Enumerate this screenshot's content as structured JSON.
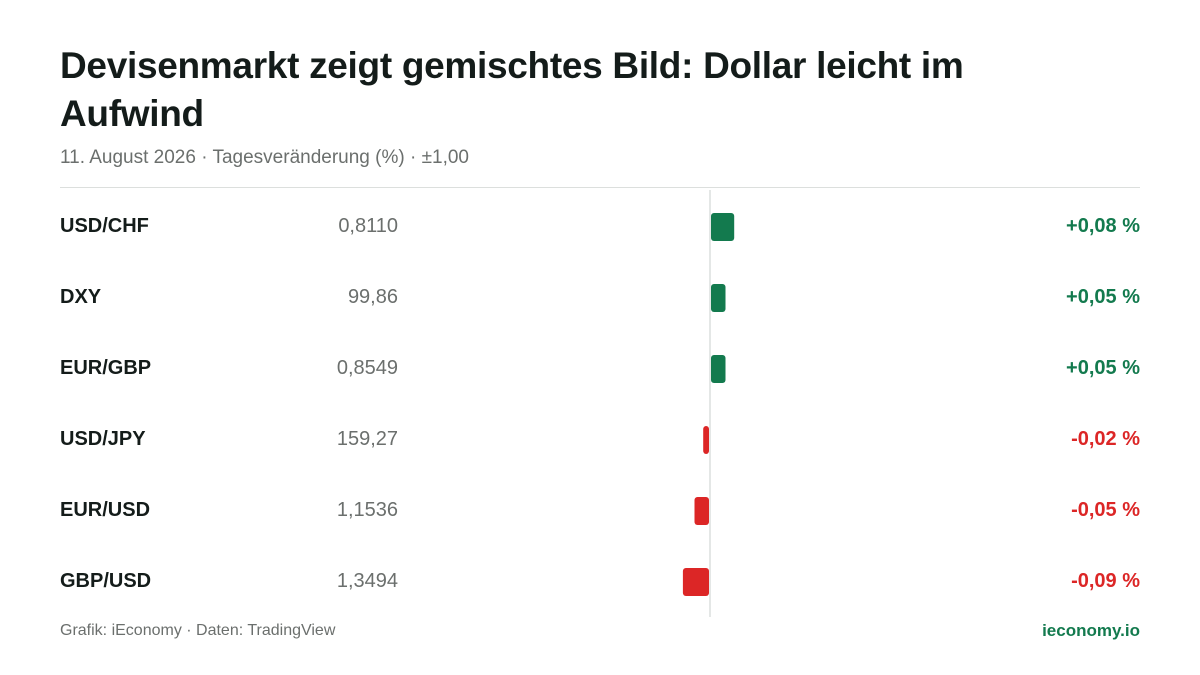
{
  "header": {
    "title": "Devisenmarkt zeigt gemischtes Bild: Dollar leicht im Aufwind",
    "subtitle": "11. August 2026 · Tagesveränderung (%) · ±1,00"
  },
  "rows": [
    {
      "label": "USD/CHF",
      "price": "0,8110",
      "change_text": "+0,08 %"
    },
    {
      "label": "DXY",
      "price": "99,86",
      "change_text": "+0,05 %"
    },
    {
      "label": "EUR/GBP",
      "price": "0,8549",
      "change_text": "+0,05 %"
    },
    {
      "label": "USD/JPY",
      "price": "159,27",
      "change_text": "-0,02 %"
    },
    {
      "label": "EUR/USD",
      "price": "1,1536",
      "change_text": "-0,05 %"
    },
    {
      "label": "GBP/USD",
      "price": "1,3494",
      "change_text": "-0,09 %"
    }
  ],
  "footer": {
    "source": "Grafik: iEconomy · Daten: TradingView",
    "brand": "ieconomy.io"
  },
  "colors": {
    "positive": "#137a4e",
    "negative": "#dc2626",
    "axis": "#dcdfdd"
  },
  "chart_data": {
    "type": "bar",
    "orientation": "horizontal",
    "title": "Devisenmarkt zeigt gemischtes Bild: Dollar leicht im Aufwind",
    "subtitle": "11. August 2026 · Tagesveränderung (%) · ±1,00",
    "categories": [
      "USD/CHF",
      "DXY",
      "EUR/GBP",
      "USD/JPY",
      "EUR/USD",
      "GBP/USD"
    ],
    "values": [
      0.08,
      0.05,
      0.05,
      -0.02,
      -0.05,
      -0.09
    ],
    "xlim": [
      -1.0,
      1.0
    ],
    "grid": false,
    "legend": "none"
  }
}
